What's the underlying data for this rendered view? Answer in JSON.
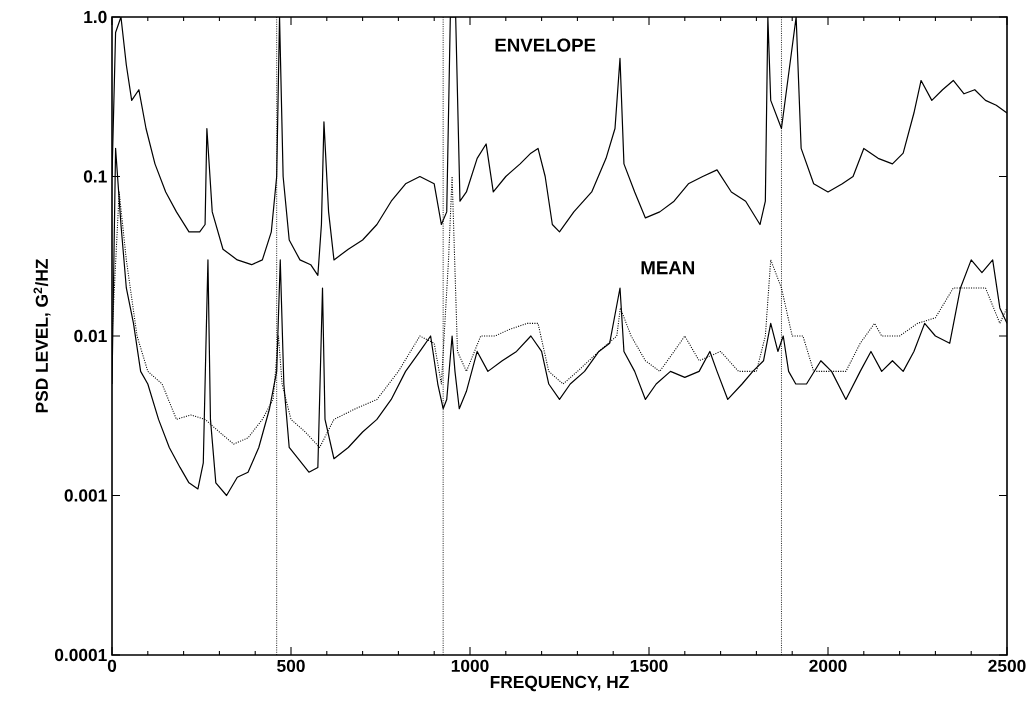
{
  "chart_data": {
    "type": "line",
    "xlabel": "FREQUENCY, HZ",
    "ylabel": "PSD LEVEL, G$^{2}$/HZ",
    "log": "y",
    "grid": false,
    "xlim": [
      0,
      2500
    ],
    "xticks": [
      0,
      500,
      1000,
      1500,
      2000,
      2500
    ],
    "ylim": [
      0.0001,
      1
    ],
    "yticks": [
      0.0001,
      0.001,
      0.01,
      0.1,
      {
        "value": 1,
        "label": "1.0"
      }
    ],
    "annotations": [
      "ENVELOPE",
      "MEAN"
    ],
    "ref_lines": [
      {
        "axis": "x",
        "value": 460,
        "line_style": "dotted",
        "color": "#000000"
      },
      {
        "axis": "x",
        "value": 925,
        "line_style": "dotted",
        "color": "#000000"
      },
      {
        "axis": "x",
        "value": 1870,
        "line_style": "dotted",
        "color": "#000000"
      }
    ],
    "series": [
      {
        "color": "#000000",
        "line_style": "solid",
        "x": [
          0,
          10,
          25,
          40,
          55,
          75,
          95,
          120,
          150,
          180,
          215,
          245,
          260,
          265,
          280,
          310,
          350,
          390,
          420,
          445,
          460,
          468,
          478,
          495,
          525,
          555,
          575,
          585,
          592,
          605,
          620,
          660,
          700,
          740,
          780,
          820,
          860,
          900,
          920,
          935,
          945,
          960,
          972,
          990,
          1020,
          1045,
          1065,
          1100,
          1140,
          1170,
          1190,
          1210,
          1230,
          1250,
          1290,
          1340,
          1380,
          1405,
          1419,
          1430,
          1460,
          1490,
          1530,
          1570,
          1610,
          1650,
          1690,
          1730,
          1770,
          1810,
          1825,
          1832,
          1840,
          1870,
          1911,
          1925,
          1960,
          2000,
          2040,
          2070,
          2100,
          2140,
          2180,
          2210,
          2240,
          2260,
          2290,
          2320,
          2350,
          2380,
          2410,
          2440,
          2470,
          2500
        ],
        "values": [
          0.1,
          0.8,
          1.0,
          0.5,
          0.3,
          0.35,
          0.2,
          0.12,
          0.08,
          0.06,
          0.045,
          0.045,
          0.05,
          0.2,
          0.06,
          0.035,
          0.03,
          0.028,
          0.03,
          0.045,
          0.1,
          1.0,
          0.1,
          0.04,
          0.03,
          0.028,
          0.024,
          0.05,
          0.22,
          0.06,
          0.03,
          0.035,
          0.04,
          0.05,
          0.07,
          0.09,
          0.1,
          0.09,
          0.05,
          0.06,
          1.0,
          1.0,
          0.07,
          0.08,
          0.13,
          0.16,
          0.08,
          0.1,
          0.12,
          0.14,
          0.15,
          0.1,
          0.05,
          0.045,
          0.06,
          0.08,
          0.13,
          0.2,
          0.55,
          0.12,
          0.08,
          0.055,
          0.06,
          0.07,
          0.09,
          0.1,
          0.11,
          0.08,
          0.07,
          0.05,
          0.07,
          1.0,
          0.3,
          0.2,
          1.0,
          0.15,
          0.09,
          0.08,
          0.09,
          0.1,
          0.15,
          0.13,
          0.12,
          0.14,
          0.25,
          0.4,
          0.3,
          0.35,
          0.4,
          0.33,
          0.35,
          0.3,
          0.28,
          0.25
        ]
      },
      {
        "color": "#000000",
        "line_style": "solid",
        "x": [
          0,
          10,
          25,
          40,
          60,
          80,
          100,
          130,
          160,
          190,
          215,
          240,
          255,
          262,
          268,
          275,
          290,
          320,
          350,
          380,
          410,
          440,
          460,
          470,
          480,
          495,
          520,
          550,
          575,
          588,
          595,
          620,
          660,
          700,
          740,
          780,
          820,
          860,
          890,
          910,
          925,
          935,
          950,
          958,
          970,
          990,
          1020,
          1050,
          1090,
          1130,
          1170,
          1200,
          1220,
          1250,
          1280,
          1320,
          1360,
          1390,
          1419,
          1430,
          1460,
          1490,
          1520,
          1560,
          1600,
          1640,
          1670,
          1690,
          1720,
          1760,
          1790,
          1820,
          1840,
          1860,
          1875,
          1890,
          1910,
          1940,
          1980,
          2010,
          2050,
          2090,
          2120,
          2150,
          2180,
          2210,
          2240,
          2270,
          2300,
          2340,
          2370,
          2400,
          2430,
          2460,
          2480,
          2500
        ],
        "values": [
          0.005,
          0.15,
          0.05,
          0.02,
          0.012,
          0.006,
          0.005,
          0.003,
          0.002,
          0.0015,
          0.0012,
          0.0011,
          0.0016,
          0.008,
          0.03,
          0.003,
          0.0012,
          0.001,
          0.0013,
          0.0014,
          0.002,
          0.0035,
          0.006,
          0.03,
          0.005,
          0.002,
          0.0017,
          0.0014,
          0.0015,
          0.02,
          0.003,
          0.0017,
          0.002,
          0.0025,
          0.003,
          0.004,
          0.006,
          0.008,
          0.01,
          0.005,
          0.0035,
          0.004,
          0.01,
          0.006,
          0.0035,
          0.0045,
          0.008,
          0.006,
          0.007,
          0.008,
          0.01,
          0.008,
          0.005,
          0.004,
          0.005,
          0.006,
          0.008,
          0.009,
          0.02,
          0.008,
          0.006,
          0.004,
          0.005,
          0.006,
          0.0055,
          0.006,
          0.008,
          0.006,
          0.004,
          0.005,
          0.006,
          0.007,
          0.012,
          0.008,
          0.01,
          0.006,
          0.005,
          0.005,
          0.007,
          0.006,
          0.004,
          0.006,
          0.008,
          0.006,
          0.007,
          0.006,
          0.008,
          0.012,
          0.01,
          0.009,
          0.02,
          0.03,
          0.025,
          0.03,
          0.015,
          0.012
        ]
      },
      {
        "color": "#000000",
        "line_style": "dotted",
        "x": [
          0,
          20,
          40,
          70,
          100,
          140,
          180,
          220,
          260,
          300,
          340,
          380,
          420,
          450,
          465,
          475,
          500,
          540,
          580,
          620,
          680,
          740,
          800,
          860,
          900,
          920,
          940,
          950,
          965,
          990,
          1030,
          1070,
          1110,
          1160,
          1190,
          1220,
          1260,
          1300,
          1360,
          1410,
          1420,
          1450,
          1490,
          1530,
          1570,
          1600,
          1640,
          1700,
          1750,
          1800,
          1825,
          1840,
          1870,
          1900,
          1930,
          1960,
          2000,
          2050,
          2090,
          2130,
          2150,
          2200,
          2250,
          2300,
          2350,
          2400,
          2440,
          2480,
          2500
        ],
        "values": [
          0.01,
          0.08,
          0.03,
          0.01,
          0.006,
          0.005,
          0.003,
          0.0032,
          0.003,
          0.0025,
          0.0021,
          0.0023,
          0.003,
          0.004,
          0.01,
          0.005,
          0.003,
          0.0025,
          0.002,
          0.003,
          0.0035,
          0.004,
          0.006,
          0.01,
          0.009,
          0.005,
          0.03,
          0.1,
          0.008,
          0.006,
          0.01,
          0.01,
          0.011,
          0.012,
          0.012,
          0.006,
          0.005,
          0.006,
          0.008,
          0.01,
          0.015,
          0.01,
          0.007,
          0.006,
          0.008,
          0.01,
          0.007,
          0.008,
          0.006,
          0.006,
          0.01,
          0.03,
          0.02,
          0.01,
          0.01,
          0.006,
          0.006,
          0.006,
          0.009,
          0.012,
          0.01,
          0.01,
          0.012,
          0.013,
          0.02,
          0.02,
          0.02,
          0.012,
          0.015
        ]
      }
    ]
  }
}
